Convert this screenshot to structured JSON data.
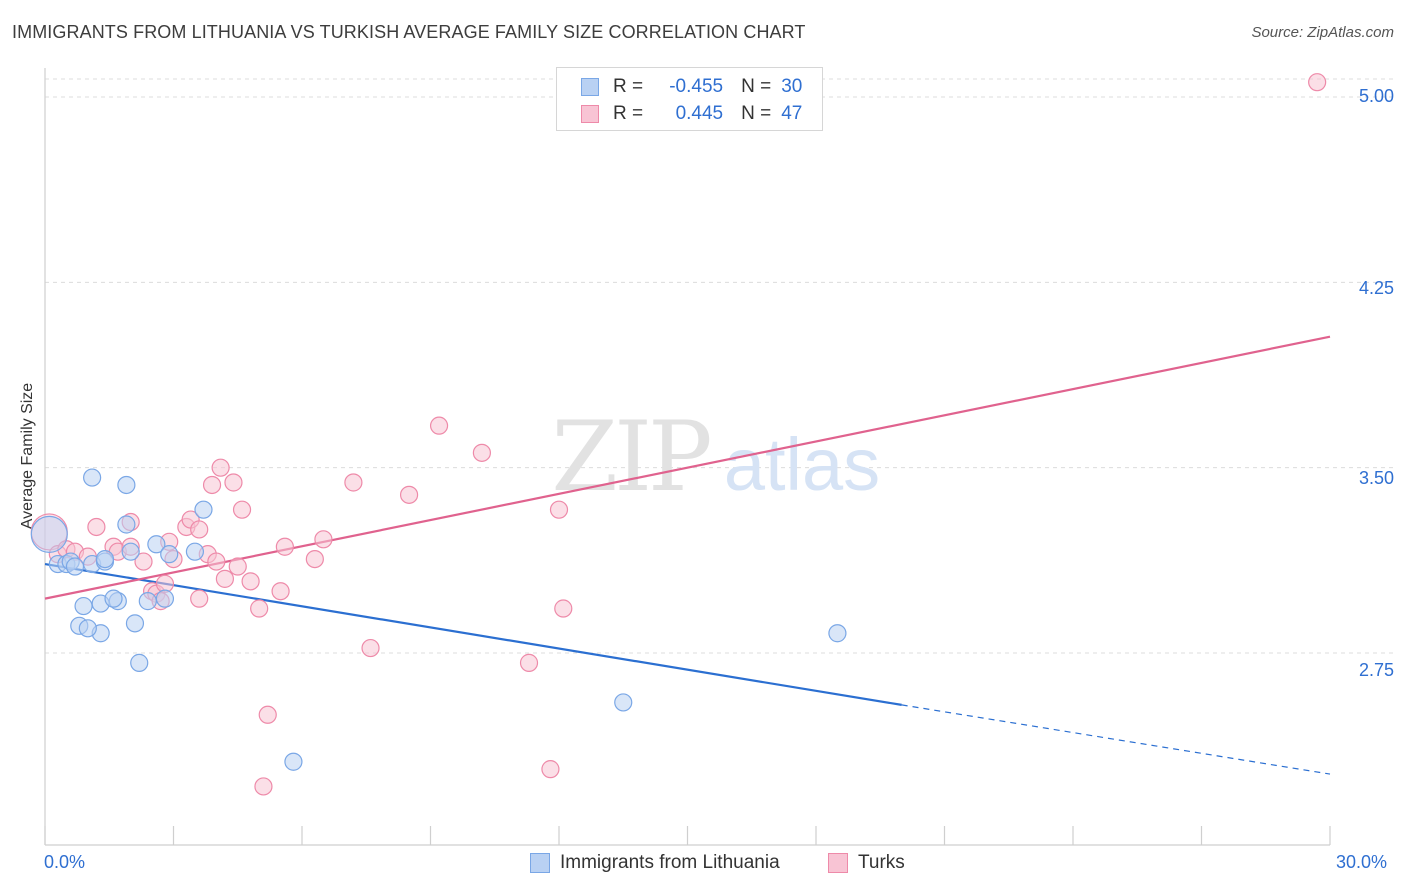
{
  "header": {
    "title": "IMMIGRANTS FROM LITHUANIA VS TURKISH AVERAGE FAMILY SIZE CORRELATION CHART",
    "source": "Source: ZipAtlas.com"
  },
  "watermark": {
    "zip": "ZIP",
    "atlas": "atlas"
  },
  "legend": {
    "rows": [
      {
        "r_label": "R =",
        "r_value": "-0.455",
        "n_label": "N =",
        "n_value": "30"
      },
      {
        "r_label": "R =",
        "r_value": "0.445",
        "n_label": "N =",
        "n_value": "47"
      }
    ]
  },
  "colors": {
    "blue": "#7aa7e6",
    "blue_fill": "#b9d1f3",
    "blue_line": "#2b6fd1",
    "pink": "#ee8aa9",
    "pink_fill": "#f8c4d4",
    "pink_line": "#e0628e",
    "tick_text": "#2f6fd1"
  },
  "chart_data": {
    "type": "scatter",
    "title": "IMMIGRANTS FROM LITHUANIA VS TURKISH AVERAGE FAMILY SIZE CORRELATION CHART",
    "xlabel": "",
    "ylabel": "Average Family Size",
    "xlim": [
      0,
      30
    ],
    "ylim": [
      2.0,
      5.2
    ],
    "x_tick_labels": [
      "0.0%",
      "30.0%"
    ],
    "y_ticks": [
      2.75,
      3.5,
      4.25,
      5.0
    ],
    "y_tick_labels": [
      "2.75",
      "3.50",
      "4.25",
      "5.00"
    ],
    "grid": true,
    "legend_position": "bottom",
    "series": [
      {
        "name": "Immigrants from Lithuania",
        "r": -0.455,
        "n": 30,
        "points": [
          [
            0.1,
            3.23
          ],
          [
            0.3,
            3.11
          ],
          [
            0.5,
            3.11
          ],
          [
            0.6,
            3.12
          ],
          [
            0.7,
            3.1
          ],
          [
            1.1,
            3.11
          ],
          [
            1.1,
            3.46
          ],
          [
            1.4,
            3.12
          ],
          [
            1.4,
            3.13
          ],
          [
            1.9,
            3.43
          ],
          [
            1.9,
            3.27
          ],
          [
            2.6,
            3.19
          ],
          [
            3.7,
            3.33
          ],
          [
            3.5,
            3.16
          ],
          [
            2.9,
            3.15
          ],
          [
            2.4,
            2.96
          ],
          [
            2.8,
            2.97
          ],
          [
            1.3,
            2.95
          ],
          [
            0.9,
            2.94
          ],
          [
            1.7,
            2.96
          ],
          [
            0.8,
            2.86
          ],
          [
            1.3,
            2.83
          ],
          [
            1.0,
            2.85
          ],
          [
            2.1,
            2.87
          ],
          [
            2.2,
            2.71
          ],
          [
            1.6,
            2.97
          ],
          [
            18.5,
            2.83
          ],
          [
            13.5,
            2.55
          ],
          [
            5.8,
            2.31
          ],
          [
            2.0,
            3.16
          ]
        ],
        "trend": {
          "x0": 0.0,
          "y0": 3.11,
          "x1": 20.0,
          "y1": 2.54,
          "dash_to_x": 30.0,
          "dash_to_y": 2.26
        }
      },
      {
        "name": "Turks",
        "r": 0.445,
        "n": 47,
        "points": [
          [
            0.1,
            3.24
          ],
          [
            0.3,
            3.15
          ],
          [
            0.5,
            3.17
          ],
          [
            0.7,
            3.16
          ],
          [
            1.0,
            3.14
          ],
          [
            1.2,
            3.26
          ],
          [
            1.6,
            3.18
          ],
          [
            1.7,
            3.16
          ],
          [
            2.0,
            3.28
          ],
          [
            2.0,
            3.18
          ],
          [
            2.3,
            3.12
          ],
          [
            2.5,
            3.0
          ],
          [
            2.6,
            2.99
          ],
          [
            2.8,
            3.03
          ],
          [
            2.9,
            3.2
          ],
          [
            3.0,
            3.13
          ],
          [
            3.3,
            3.26
          ],
          [
            3.4,
            3.29
          ],
          [
            3.6,
            3.25
          ],
          [
            3.9,
            3.43
          ],
          [
            4.1,
            3.5
          ],
          [
            4.4,
            3.44
          ],
          [
            4.6,
            3.33
          ],
          [
            3.8,
            3.15
          ],
          [
            4.2,
            3.05
          ],
          [
            4.5,
            3.1
          ],
          [
            4.8,
            3.04
          ],
          [
            5.0,
            2.93
          ],
          [
            5.5,
            3.0
          ],
          [
            5.6,
            3.18
          ],
          [
            6.3,
            3.13
          ],
          [
            6.5,
            3.21
          ],
          [
            7.2,
            3.44
          ],
          [
            3.6,
            2.97
          ],
          [
            2.7,
            2.96
          ],
          [
            5.2,
            2.5
          ],
          [
            5.1,
            2.21
          ],
          [
            7.6,
            2.77
          ],
          [
            8.5,
            3.39
          ],
          [
            9.2,
            3.67
          ],
          [
            10.2,
            3.56
          ],
          [
            11.3,
            2.71
          ],
          [
            12.0,
            3.33
          ],
          [
            12.1,
            2.93
          ],
          [
            11.8,
            2.28
          ],
          [
            29.7,
            5.06
          ],
          [
            4.0,
            3.12
          ]
        ],
        "trend": {
          "x0": 0.0,
          "y0": 2.97,
          "x1": 30.0,
          "y1": 4.03
        }
      }
    ]
  },
  "bottom_legend": {
    "items": [
      {
        "label": "Immigrants from Lithuania"
      },
      {
        "label": "Turks"
      }
    ]
  }
}
